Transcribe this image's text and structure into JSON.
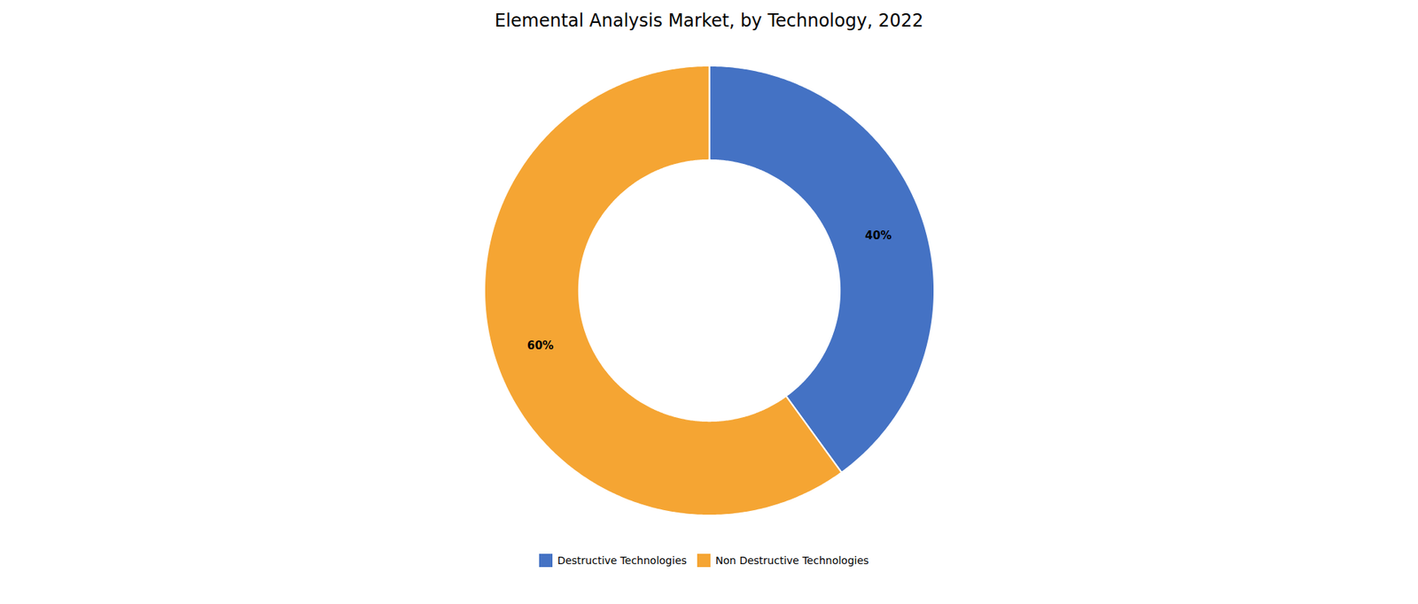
{
  "chart_data": {
    "type": "pie",
    "title": "Elemental Analysis Market, by Technology, 2022",
    "categories": [
      "Destructive Technologies",
      "Non Destructive Technologies"
    ],
    "values": [
      40,
      60
    ],
    "value_labels": [
      "40%",
      "60%"
    ],
    "colors": [
      "#4472C4",
      "#F5A533"
    ],
    "data_labels": true,
    "legend": "bottom"
  }
}
